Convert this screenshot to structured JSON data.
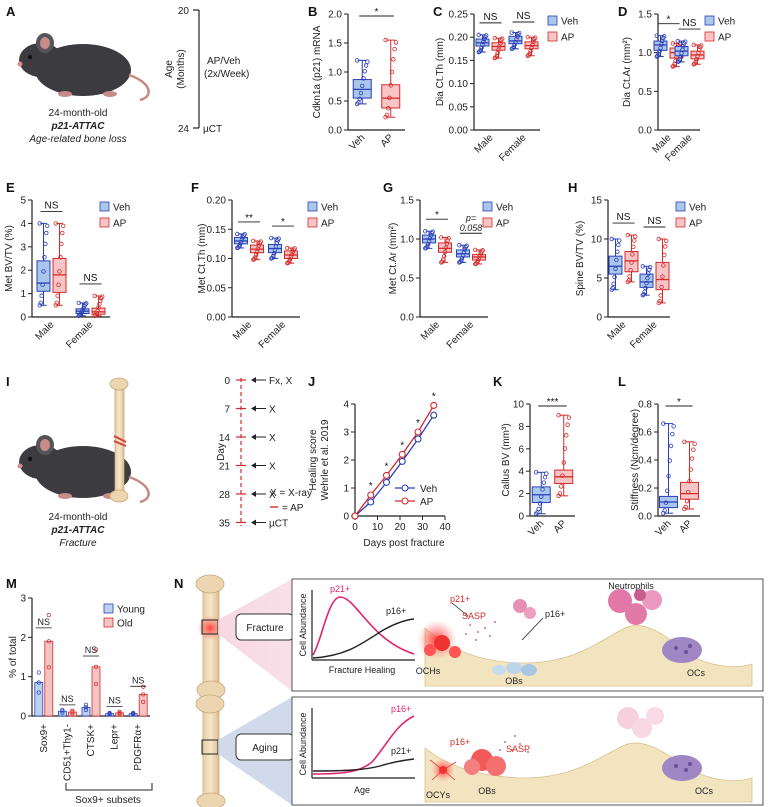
{
  "colors": {
    "veh_fill": "#a9c7ea",
    "veh_stroke": "#2a3fb8",
    "ap_fill": "#f7c5c5",
    "ap_stroke": "#d42a2a",
    "young_fill": "#bcd3f0",
    "old_fill": "#f4c3c3",
    "pink_box": "#f2cfdc",
    "blue_box": "#c9d3e8"
  },
  "panels": {
    "A": {
      "letter": "A",
      "mouse_line1": "24-month-old",
      "mouse_line2": "p21-ATTAC",
      "mouse_line3": "Age-related bone loss",
      "axis_label": "Age",
      "axis_unit": "(Months)",
      "tick_top": "20",
      "tick_bottom": "24",
      "treat1": "AP/Veh",
      "treat2": "(2x/Week)",
      "endpoint": "µCT"
    },
    "I": {
      "letter": "I",
      "mouse_line1": "24-month-old",
      "mouse_line2": "p21-ATTAC",
      "mouse_line3": "Fracture",
      "axis_label": "Day",
      "days": [
        "0",
        "7",
        "14",
        "21",
        "28",
        "35"
      ],
      "events": [
        "Fx, X",
        "X",
        "X",
        "X",
        "X",
        "µCT"
      ],
      "legend_x": "X = X-ray",
      "legend_ap": "= AP"
    },
    "M": {
      "letter": "M",
      "ylabel": "% of total",
      "yticks": [
        "0",
        "1",
        "2",
        "3"
      ],
      "legend": [
        "Young",
        "Old"
      ],
      "categories": [
        "Sox9+",
        "CD51+Thy1-",
        "CTSK+",
        "Lepr+",
        "PDGFRα+"
      ],
      "young": [
        0.85,
        0.12,
        0.22,
        0.06,
        0.06
      ],
      "old": [
        1.9,
        0.1,
        1.25,
        0.08,
        0.55
      ],
      "sig": [
        "NS",
        "NS",
        "NS",
        "NS",
        "NS"
      ],
      "subset_label": "Sox9+ subsets"
    },
    "N": {
      "letter": "N",
      "fracture_label": "Fracture",
      "aging_label": "Aging",
      "fracture_chart": {
        "ylabel": "Cell Abundance",
        "xlabel": "Fracture Healing",
        "p21": "p21+",
        "p16": "p16+"
      },
      "aging_chart": {
        "ylabel": "Cell Abundance",
        "xlabel": "Age",
        "p21": "p21+",
        "p16": "p16+"
      },
      "fracture_cells": {
        "neutrophils": "Neutrophils",
        "p21": "p21+",
        "sasp": "SASP",
        "p16": "p16+",
        "ochs": "OCHs",
        "obs": "OBs",
        "ocs": "OCs"
      },
      "aging_cells": {
        "p16": "p16+",
        "sasp": "SASP",
        "ocys": "OCYs",
        "obs": "OBs",
        "ocs": "OCs"
      }
    }
  },
  "chart_data": [
    {
      "id": "B",
      "letter": "B",
      "type": "box",
      "ylabel": "Cdkn1a (p21) mRNA",
      "ylim": [
        0,
        2.0
      ],
      "yticks": [
        0,
        0.5,
        1.0,
        1.5,
        2.0
      ],
      "groups": [
        "Veh",
        "AP"
      ],
      "box": [
        [
          0.45,
          0.55,
          0.7,
          0.87,
          1.2
        ],
        [
          0.22,
          0.38,
          0.55,
          0.78,
          1.55
        ]
      ],
      "comparisons": [
        {
          "groups": [
            0,
            1
          ],
          "label": "*"
        }
      ],
      "legend": null
    },
    {
      "id": "C",
      "letter": "C",
      "type": "box",
      "ylabel": "Dia Ct.Th (mm)",
      "ylim": [
        0,
        0.25
      ],
      "yticks": [
        0,
        0.05,
        0.1,
        0.15,
        0.2,
        0.25
      ],
      "categories": [
        "Male",
        "Female"
      ],
      "series": [
        {
          "name": "Veh",
          "box": [
            [
              0.168,
              0.181,
              0.188,
              0.196,
              0.205
            ],
            [
              0.175,
              0.186,
              0.192,
              0.202,
              0.21
            ]
          ]
        },
        {
          "name": "AP",
          "box": [
            [
              0.155,
              0.172,
              0.18,
              0.188,
              0.198
            ],
            [
              0.16,
              0.175,
              0.182,
              0.19,
              0.2
            ]
          ]
        }
      ],
      "sig": [
        "NS",
        "NS"
      ],
      "legend": [
        "Veh",
        "AP"
      ]
    },
    {
      "id": "D",
      "letter": "D",
      "type": "box",
      "ylabel": "Dia Ct.Ar (mm²)",
      "ylim": [
        0,
        1.5
      ],
      "yticks": [
        0,
        0.5,
        1.0,
        1.5
      ],
      "categories": [
        "Male",
        "Female"
      ],
      "series": [
        {
          "name": "Veh",
          "box": [
            [
              0.95,
              1.03,
              1.1,
              1.15,
              1.22
            ],
            [
              0.88,
              0.96,
              1.02,
              1.08,
              1.15
            ]
          ]
        },
        {
          "name": "AP",
          "box": [
            [
              0.82,
              0.93,
              1.0,
              1.06,
              1.12
            ],
            [
              0.85,
              0.92,
              0.97,
              1.02,
              1.1
            ]
          ]
        }
      ],
      "sig": [
        "*",
        "NS"
      ],
      "legend": [
        "Veh",
        "AP"
      ]
    },
    {
      "id": "E",
      "letter": "E",
      "type": "box",
      "ylabel": "Met BV/TV (%)",
      "ylim": [
        0,
        5
      ],
      "yticks": [
        0,
        1,
        2,
        3,
        4,
        5
      ],
      "categories": [
        "Male",
        "Female"
      ],
      "series": [
        {
          "name": "Veh",
          "box": [
            [
              0.5,
              1.1,
              1.45,
              2.4,
              4.0
            ],
            [
              0.05,
              0.15,
              0.25,
              0.35,
              0.6
            ]
          ]
        },
        {
          "name": "AP",
          "box": [
            [
              0.5,
              1.05,
              1.8,
              2.5,
              4.0
            ],
            [
              0.05,
              0.12,
              0.22,
              0.38,
              0.9
            ]
          ]
        }
      ],
      "sig": [
        "NS",
        "NS"
      ],
      "legend": [
        "Veh",
        "AP"
      ]
    },
    {
      "id": "F",
      "letter": "F",
      "type": "box",
      "ylabel": "Met Ct.Th (mm)",
      "ylim": [
        0,
        0.2
      ],
      "yticks": [
        0,
        0.05,
        0.1,
        0.15,
        0.2
      ],
      "categories": [
        "Male",
        "Female"
      ],
      "series": [
        {
          "name": "Veh",
          "box": [
            [
              0.118,
              0.125,
              0.13,
              0.136,
              0.142
            ],
            [
              0.1,
              0.11,
              0.117,
              0.124,
              0.135
            ]
          ]
        },
        {
          "name": "AP",
          "box": [
            [
              0.098,
              0.11,
              0.116,
              0.123,
              0.13
            ],
            [
              0.092,
              0.1,
              0.106,
              0.113,
              0.118
            ]
          ]
        }
      ],
      "sig": [
        "**",
        "*"
      ],
      "legend": [
        "Veh",
        "AP"
      ]
    },
    {
      "id": "G",
      "letter": "G",
      "type": "box",
      "ylabel": "Met Ct.Ar (mm²)",
      "ylim": [
        0,
        1.5
      ],
      "yticks": [
        0,
        0.5,
        1.0,
        1.5
      ],
      "categories": [
        "Male",
        "Female"
      ],
      "series": [
        {
          "name": "Veh",
          "box": [
            [
              0.88,
              0.95,
              1.0,
              1.05,
              1.1
            ],
            [
              0.7,
              0.77,
              0.81,
              0.86,
              0.92
            ]
          ]
        },
        {
          "name": "AP",
          "box": [
            [
              0.7,
              0.83,
              0.88,
              0.95,
              1.02
            ],
            [
              0.68,
              0.73,
              0.77,
              0.8,
              0.86
            ]
          ]
        }
      ],
      "sig": [
        "*",
        "p=\n0.058"
      ],
      "legend": [
        "Veh",
        "AP"
      ]
    },
    {
      "id": "H",
      "letter": "H",
      "type": "box",
      "ylabel": "Spine BV/TV (%)",
      "ylim": [
        0,
        15
      ],
      "yticks": [
        0,
        5,
        10,
        15
      ],
      "categories": [
        "Male",
        "Female"
      ],
      "series": [
        {
          "name": "Veh",
          "box": [
            [
              3.5,
              5.5,
              6.5,
              7.8,
              10.0
            ],
            [
              2.8,
              3.8,
              4.5,
              5.5,
              6.5
            ]
          ]
        },
        {
          "name": "AP",
          "box": [
            [
              4.5,
              5.8,
              7.2,
              8.4,
              10.5
            ],
            [
              1.8,
              3.5,
              4.8,
              7.0,
              10.0
            ]
          ]
        }
      ],
      "sig": [
        "NS",
        "NS"
      ],
      "legend": [
        "Veh",
        "AP"
      ]
    },
    {
      "id": "J",
      "letter": "J",
      "type": "line",
      "ylabel": "Healing score\nWehrle et al. 2019",
      "xlabel": "Days post fracture",
      "x": [
        0,
        7,
        14,
        21,
        28,
        35
      ],
      "xlim": [
        0,
        40
      ],
      "xticks": [
        0,
        10,
        20,
        30,
        40
      ],
      "ylim": [
        0,
        4
      ],
      "yticks": [
        0,
        1,
        2,
        3,
        4
      ],
      "series": [
        {
          "name": "Veh",
          "values": [
            0,
            0.5,
            1.2,
            1.95,
            2.75,
            3.6
          ]
        },
        {
          "name": "AP",
          "values": [
            0,
            0.75,
            1.45,
            2.2,
            3.0,
            3.95
          ]
        }
      ],
      "sig": [
        "*",
        "*",
        "*",
        "*",
        "*"
      ],
      "legend": [
        "Veh",
        "AP"
      ]
    },
    {
      "id": "K",
      "letter": "K",
      "type": "box",
      "ylabel": "Callus BV (mm³)",
      "ylim": [
        0,
        10
      ],
      "yticks": [
        0,
        2,
        4,
        6,
        8,
        10
      ],
      "groups": [
        "Veh",
        "AP"
      ],
      "box": [
        [
          0.2,
          1.2,
          1.9,
          2.6,
          3.9
        ],
        [
          1.8,
          2.9,
          3.5,
          4.1,
          9.0
        ]
      ],
      "comparisons": [
        {
          "groups": [
            0,
            1
          ],
          "label": "***"
        }
      ],
      "legend": null
    },
    {
      "id": "L",
      "letter": "L",
      "type": "box",
      "ylabel": "Stiffness (Ncm/degree)",
      "ylim": [
        0,
        0.8
      ],
      "yticks": [
        0,
        0.2,
        0.4,
        0.6,
        0.8
      ],
      "groups": [
        "Veh",
        "AP"
      ],
      "box": [
        [
          0.02,
          0.06,
          0.1,
          0.14,
          0.66
        ],
        [
          0.05,
          0.12,
          0.16,
          0.24,
          0.53
        ]
      ],
      "comparisons": [
        {
          "groups": [
            0,
            1
          ],
          "label": "*"
        }
      ],
      "legend": null
    }
  ]
}
